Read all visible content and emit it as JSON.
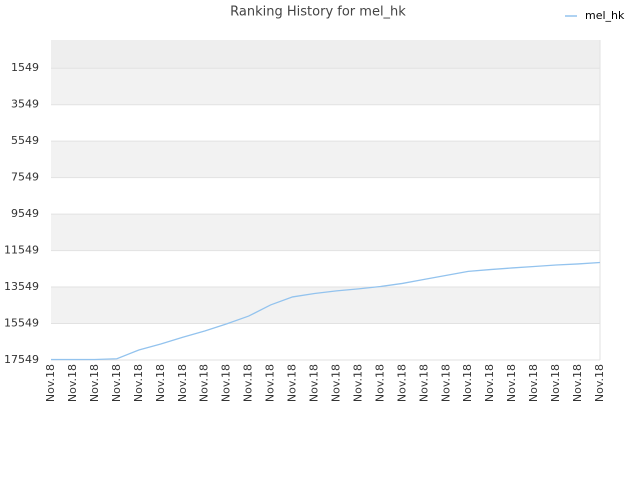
{
  "chart_data": {
    "type": "line",
    "title": "Ranking History for mel_hk",
    "categories": [
      "Nov.18",
      "Nov.18",
      "Nov.18",
      "Nov.18",
      "Nov.18",
      "Nov.18",
      "Nov.18",
      "Nov.18",
      "Nov.18",
      "Nov.18",
      "Nov.18",
      "Nov.18",
      "Nov.18",
      "Nov.18",
      "Nov.18",
      "Nov.18",
      "Nov.18",
      "Nov.18",
      "Nov.18",
      "Nov.18",
      "Nov.18",
      "Nov.18",
      "Nov.18",
      "Nov.18",
      "Nov.18",
      "Nov.18"
    ],
    "series": [
      {
        "name": "mel_hk",
        "color": "#93c3ee",
        "values": [
          17520,
          17520,
          17520,
          17480,
          17000,
          16670,
          16300,
          15960,
          15570,
          15140,
          14530,
          14090,
          13900,
          13760,
          13650,
          13520,
          13350,
          13130,
          12910,
          12690,
          12590,
          12500,
          12420,
          12340,
          12280,
          12200
        ]
      }
    ],
    "ylim": [
      17549,
      0
    ],
    "yticks": [
      17549,
      15549,
      13549,
      11549,
      9549,
      7549,
      5549,
      3549,
      1549
    ],
    "grid": true,
    "legend": "top-right"
  }
}
